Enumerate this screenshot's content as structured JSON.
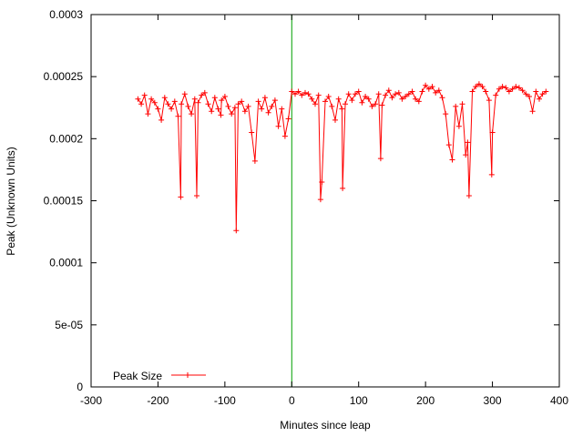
{
  "chart_data": {
    "type": "line",
    "xlabel": "Minutes since leap",
    "ylabel": "Peak (Unknown Units)",
    "xlim": [
      -300,
      400
    ],
    "ylim": [
      0,
      0.0003
    ],
    "x_ticks": [
      -300,
      -200,
      -100,
      0,
      100,
      200,
      300,
      400
    ],
    "x_tick_labels": [
      "-300",
      "-200",
      "-100",
      "0",
      "100",
      "200",
      "300",
      "400"
    ],
    "y_ticks": [
      0,
      5e-05,
      0.0001,
      0.00015,
      0.0002,
      0.00025,
      0.0003
    ],
    "y_tick_labels": [
      "0",
      "5e-05",
      "0.0001",
      "0.00015",
      "0.0002",
      "0.00025",
      "0.0003"
    ],
    "grid": false,
    "legend_position": "bottom-left",
    "reference_line": {
      "x": 0,
      "color": "#00a000"
    },
    "series": [
      {
        "name": "Peak Size",
        "color": "#ff0000",
        "marker": "plus",
        "x": [
          -230,
          -225,
          -220,
          -215,
          -210,
          -205,
          -200,
          -195,
          -190,
          -185,
          -180,
          -175,
          -170,
          -166,
          -165,
          -160,
          -155,
          -150,
          -145,
          -142,
          -140,
          -135,
          -130,
          -125,
          -120,
          -115,
          -110,
          -106,
          -105,
          -100,
          -95,
          -90,
          -85,
          -83,
          -80,
          -75,
          -70,
          -65,
          -60,
          -55,
          -50,
          -45,
          -40,
          -35,
          -30,
          -25,
          -20,
          -15,
          -10,
          -5,
          0,
          5,
          10,
          15,
          20,
          25,
          30,
          35,
          40,
          43,
          45,
          50,
          55,
          60,
          65,
          70,
          75,
          76,
          80,
          85,
          90,
          95,
          100,
          105,
          110,
          115,
          120,
          125,
          130,
          133,
          135,
          140,
          145,
          150,
          155,
          160,
          165,
          170,
          175,
          180,
          185,
          190,
          195,
          200,
          205,
          210,
          215,
          220,
          225,
          230,
          235,
          240,
          245,
          250,
          255,
          260,
          263,
          265,
          270,
          275,
          280,
          285,
          290,
          295,
          299,
          300,
          305,
          310,
          315,
          320,
          325,
          330,
          335,
          340,
          345,
          350,
          355,
          360,
          365,
          370,
          375,
          380
        ],
        "y": [
          0.000232,
          0.000228,
          0.000235,
          0.00022,
          0.000232,
          0.000229,
          0.000224,
          0.000215,
          0.000233,
          0.000228,
          0.000224,
          0.00023,
          0.000218,
          0.000153,
          0.000228,
          0.000236,
          0.000226,
          0.00022,
          0.000232,
          0.000154,
          0.000229,
          0.000235,
          0.000237,
          0.000228,
          0.000222,
          0.000233,
          0.000224,
          0.000219,
          0.000231,
          0.000234,
          0.000226,
          0.00022,
          0.000225,
          0.000126,
          0.000228,
          0.00023,
          0.000222,
          0.000226,
          0.000205,
          0.000182,
          0.00023,
          0.000224,
          0.000233,
          0.000221,
          0.000226,
          0.000231,
          0.00021,
          0.000224,
          0.000202,
          0.000216,
          0.000238,
          0.000236,
          0.000238,
          0.000235,
          0.000237,
          0.000236,
          0.000232,
          0.000228,
          0.000235,
          0.000151,
          0.000165,
          0.00023,
          0.000234,
          0.000226,
          0.000215,
          0.000232,
          0.000224,
          0.00016,
          0.000228,
          0.000236,
          0.000231,
          0.000236,
          0.000238,
          0.000229,
          0.000234,
          0.000232,
          0.000226,
          0.000228,
          0.000236,
          0.000184,
          0.000227,
          0.000235,
          0.000239,
          0.000233,
          0.000236,
          0.000237,
          0.000232,
          0.000234,
          0.000236,
          0.000238,
          0.000232,
          0.00023,
          0.000238,
          0.000243,
          0.00024,
          0.000242,
          0.000237,
          0.000239,
          0.000233,
          0.00022,
          0.000195,
          0.000183,
          0.000226,
          0.00021,
          0.000228,
          0.000187,
          0.000197,
          0.000154,
          0.000238,
          0.000242,
          0.000244,
          0.000242,
          0.000238,
          0.000231,
          0.000171,
          0.000205,
          0.000235,
          0.00024,
          0.000242,
          0.000241,
          0.000238,
          0.00024,
          0.000242,
          0.000241,
          0.000239,
          0.000236,
          0.000234,
          0.000222,
          0.000238,
          0.000232,
          0.000236,
          0.000238
        ]
      }
    ]
  }
}
